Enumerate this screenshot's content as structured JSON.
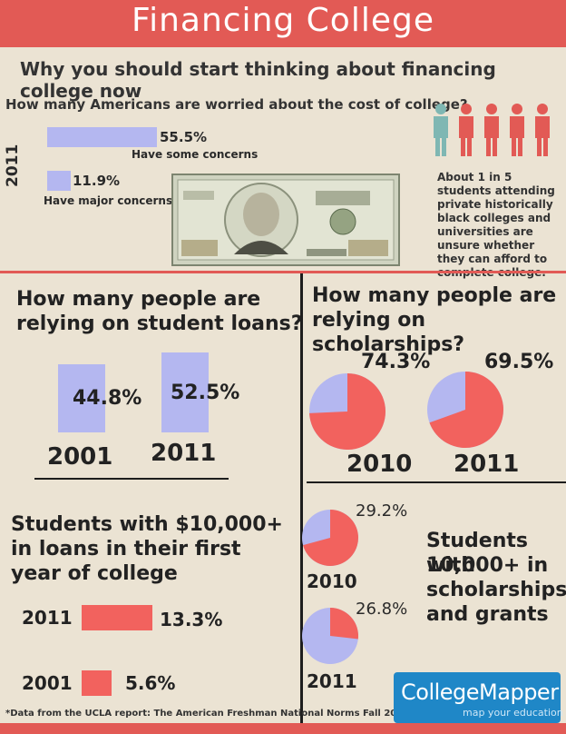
{
  "header": {
    "title": "Financing College",
    "subtitle": "Why you should start thinking about financing college now"
  },
  "concerns": {
    "question": "How many Americans are worried about the cost of college?",
    "year": "2011",
    "items": [
      {
        "value": "55.5%",
        "label": "Have some concerns"
      },
      {
        "value": "11.9%",
        "label": "Have major concerns"
      }
    ]
  },
  "hbcu_note": "About 1 in 5 students attending private historically black colleges and universities are unsure whether they can afford to complete college.",
  "loans": {
    "heading_line1": "How many people are",
    "heading_line2": "relying on student loans?"
  },
  "scholarships": {
    "heading_line1": "How many people are",
    "heading_line2": "relying on scholarships?"
  },
  "loans10k": {
    "heading_line1": "Students with $10,000+",
    "heading_line2": "in loans in their first",
    "heading_line3": "year of college"
  },
  "scholar10k": {
    "heading_line1": "Students with",
    "heading_line2": "10,000+ in",
    "heading_line3": "scholarships",
    "heading_line4": "and grants"
  },
  "footnote": "*Data from the UCLA report: The American Freshman National Norms Fall 2011",
  "logo": {
    "main": "CollegeMapper",
    "sub": "map your education"
  },
  "colors": {
    "red": "#f2625e",
    "blue": "#b4b7f0",
    "banner": "#e25a55",
    "teal": "#7fb7b3"
  },
  "chart_data": [
    {
      "type": "bar",
      "title": "How many Americans are worried about the cost of college?",
      "categories": [
        "Have some concerns",
        "Have major concerns"
      ],
      "values": [
        55.5,
        11.9
      ],
      "year": "2011"
    },
    {
      "type": "bar",
      "title": "How many people are relying on student loans?",
      "categories": [
        "2001",
        "2011"
      ],
      "values": [
        44.8,
        52.5
      ],
      "value_labels": [
        "44.8%",
        "52.5%"
      ]
    },
    {
      "type": "pie",
      "title": "How many people are relying on scholarships?",
      "categories": [
        "2010",
        "2011"
      ],
      "values": [
        74.3,
        69.5
      ],
      "value_labels": [
        "74.3%",
        "69.5%"
      ]
    },
    {
      "type": "bar",
      "title": "Students with $10,000+ in loans in their first year of college",
      "categories": [
        "2011",
        "2001"
      ],
      "values": [
        13.3,
        5.6
      ],
      "value_labels": [
        "13.3%",
        "5.6%"
      ]
    },
    {
      "type": "pie",
      "title": "Students with 10,000+ in scholarships and grants",
      "categories": [
        "2010",
        "2011"
      ],
      "values": [
        29.2,
        26.8
      ],
      "value_labels": [
        "29.2%",
        "26.8%"
      ]
    }
  ]
}
